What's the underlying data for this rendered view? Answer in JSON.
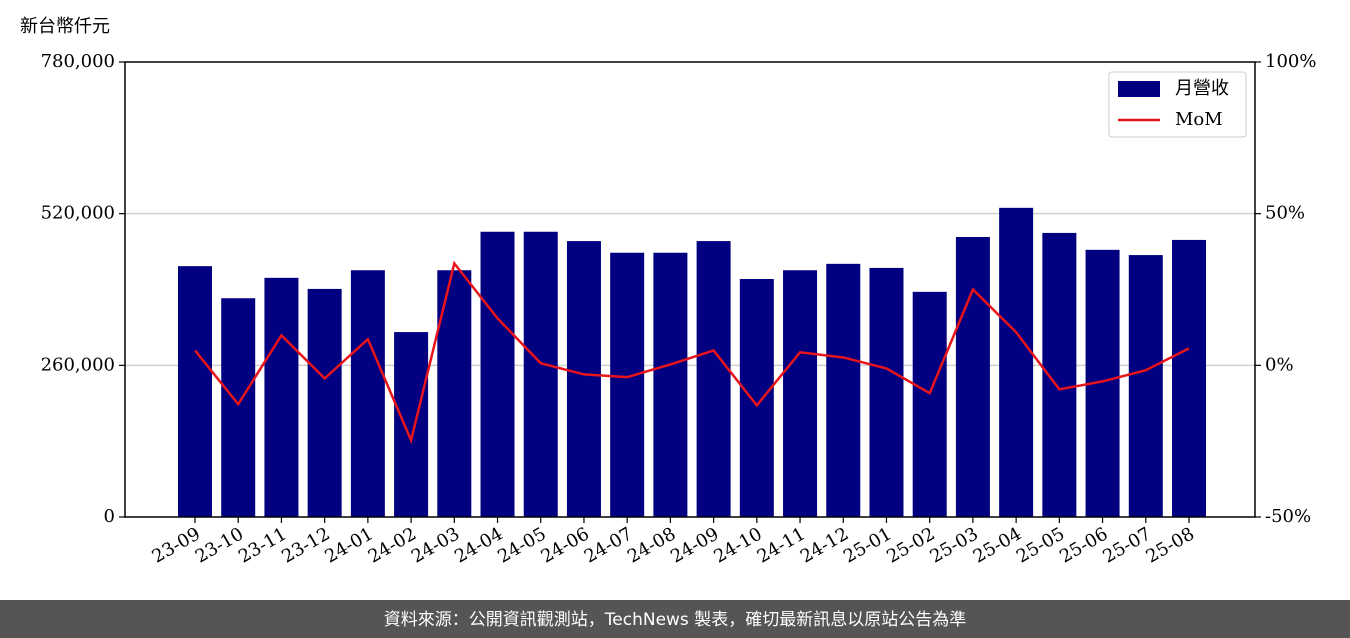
{
  "chart_data": {
    "type": "bar-line",
    "y_label": "新台幣仟元",
    "footer": "資料來源：公開資訊觀測站，TechNews 製表，確切最新訊息以原站公告為準",
    "categories": [
      "23-09",
      "23-10",
      "23-11",
      "23-12",
      "24-01",
      "24-02",
      "24-03",
      "24-04",
      "24-05",
      "24-06",
      "24-07",
      "24-08",
      "24-09",
      "24-10",
      "24-11",
      "24-12",
      "25-01",
      "25-02",
      "25-03",
      "25-04",
      "25-05",
      "25-06",
      "25-07",
      "25-08"
    ],
    "series": [
      {
        "name": "月營收",
        "type": "bar",
        "color": "#000080",
        "values": [
          430000,
          375000,
          410000,
          391000,
          423000,
          317000,
          423000,
          489000,
          489000,
          473000,
          453000,
          453000,
          473000,
          408000,
          423000,
          434000,
          427000,
          386000,
          480000,
          530000,
          487000,
          458000,
          449000,
          475000
        ]
      },
      {
        "name": "MoM",
        "type": "line",
        "axis": "y2",
        "color": "#e8141b",
        "values": [
          4.9,
          -12.8,
          9.9,
          -4.3,
          8.6,
          -24.7,
          33.6,
          15.5,
          0.7,
          -3.0,
          -3.9,
          0.3,
          4.9,
          -13.2,
          4.3,
          2.6,
          -1.0,
          -9.2,
          25.0,
          10.9,
          -7.9,
          -5.3,
          -1.6,
          5.6
        ]
      }
    ],
    "ylim": [
      0,
      780000
    ],
    "yticks": [
      0,
      {
        "value": 260000,
        "label": "260,000"
      },
      {
        "value": 520000,
        "label": "520,000"
      },
      {
        "value": 780000,
        "label": "780,000"
      }
    ],
    "y2lim": [
      -50,
      100
    ],
    "y2ticks": [
      {
        "value": -50,
        "label": "-50%"
      },
      {
        "value": 0,
        "label": "0%"
      },
      {
        "value": 50,
        "label": "50%"
      },
      {
        "value": 100,
        "label": "100%"
      }
    ],
    "grid": true,
    "legend": "upper right"
  }
}
